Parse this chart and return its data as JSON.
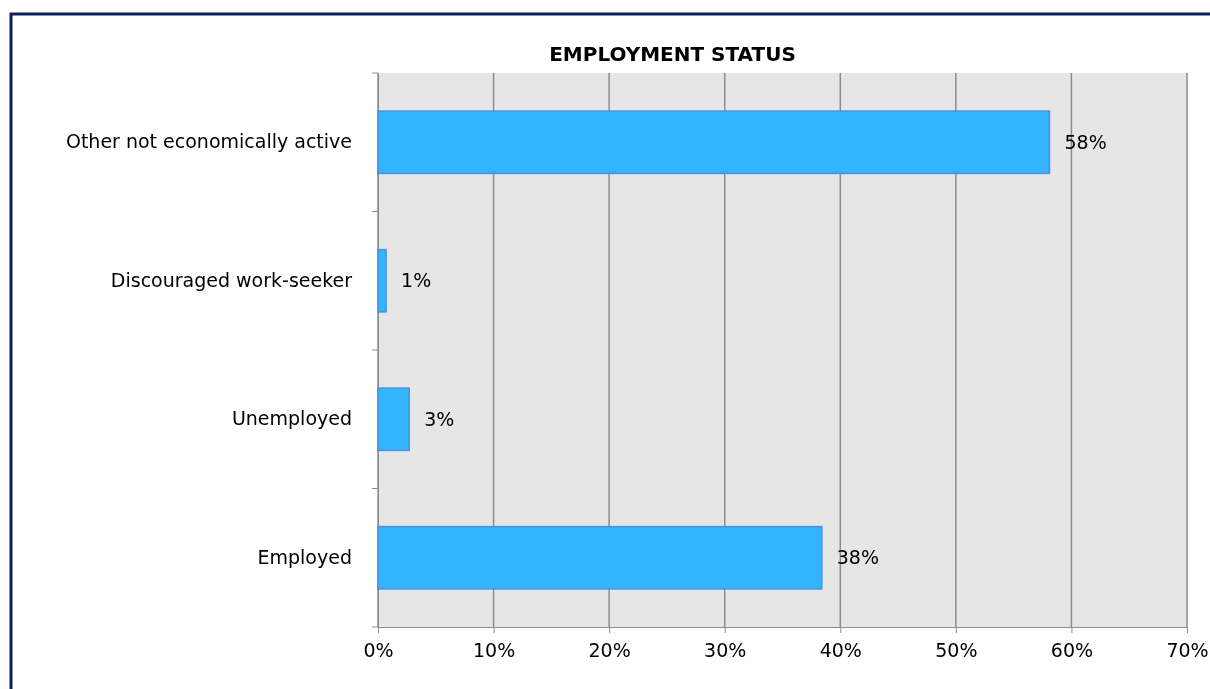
{
  "chart_data": {
    "type": "bar",
    "orientation": "horizontal",
    "title": "EMPLOYMENT STATUS",
    "categories": [
      "Other not economically active",
      "Discouraged work-seeker",
      "Unemployed",
      "Employed"
    ],
    "values": [
      58.1,
      0.7,
      2.7,
      38.4
    ],
    "value_labels": [
      "58%",
      "1%",
      "3%",
      "38%"
    ],
    "color": "#33b5ff",
    "xlim": [
      0,
      70
    ],
    "xticks": [
      {
        "value": 0,
        "label": "0%"
      },
      {
        "value": 10,
        "label": "10%"
      },
      {
        "value": 20,
        "label": "20%"
      },
      {
        "value": 30,
        "label": "30%"
      },
      {
        "value": 40,
        "label": "40%"
      },
      {
        "value": 50,
        "label": "50%"
      },
      {
        "value": 60,
        "label": "60%"
      },
      {
        "value": 70,
        "label": "70%"
      }
    ],
    "grid": "x"
  }
}
